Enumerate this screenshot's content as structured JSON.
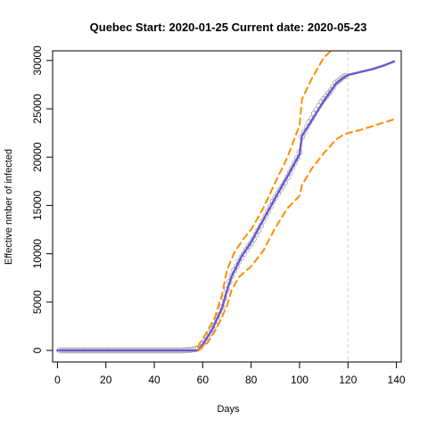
{
  "chart_data": {
    "type": "line",
    "title": "Quebec Start:  2020-01-25   Current date:  2020-05-23",
    "xlabel": "Days",
    "ylabel": "Effective nmber of infected",
    "xlim": [
      -2,
      142
    ],
    "ylim": [
      -1200,
      31000
    ],
    "xticks": [
      0,
      20,
      40,
      60,
      80,
      100,
      120,
      140
    ],
    "xtick_labels": [
      "0",
      "20",
      "40",
      "60",
      "80",
      "100",
      "120",
      "140"
    ],
    "yticks": [
      0,
      5000,
      10000,
      15000,
      20000,
      25000,
      30000
    ],
    "ytick_labels": [
      "0",
      "5000",
      "10000",
      "15000",
      "20000",
      "25000",
      "30000"
    ],
    "current_day": 120,
    "grid": false,
    "colors": {
      "fit": "#6a5acd",
      "bounds": "#ff8c00",
      "observed": "#a9a9a9",
      "current_day_line": "#d3d3d3"
    },
    "observed_markers": "open circles, days 1 to 119",
    "observed_points": [
      [
        1,
        0
      ],
      [
        2,
        0
      ],
      [
        3,
        0
      ],
      [
        4,
        0
      ],
      [
        5,
        0
      ],
      [
        6,
        0
      ],
      [
        7,
        0
      ],
      [
        8,
        0
      ],
      [
        9,
        0
      ],
      [
        10,
        0
      ],
      [
        11,
        0
      ],
      [
        12,
        0
      ],
      [
        13,
        0
      ],
      [
        14,
        0
      ],
      [
        15,
        0
      ],
      [
        16,
        0
      ],
      [
        17,
        0
      ],
      [
        18,
        0
      ],
      [
        19,
        0
      ],
      [
        20,
        0
      ],
      [
        21,
        0
      ],
      [
        22,
        0
      ],
      [
        23,
        0
      ],
      [
        24,
        0
      ],
      [
        25,
        0
      ],
      [
        26,
        0
      ],
      [
        27,
        0
      ],
      [
        28,
        0
      ],
      [
        29,
        0
      ],
      [
        30,
        0
      ],
      [
        31,
        0
      ],
      [
        32,
        0
      ],
      [
        33,
        0
      ],
      [
        34,
        0
      ],
      [
        35,
        0
      ],
      [
        36,
        0
      ],
      [
        37,
        0
      ],
      [
        38,
        0
      ],
      [
        39,
        0
      ],
      [
        40,
        0
      ],
      [
        41,
        0
      ],
      [
        42,
        0
      ],
      [
        43,
        0
      ],
      [
        44,
        0
      ],
      [
        45,
        0
      ],
      [
        46,
        0
      ],
      [
        47,
        0
      ],
      [
        48,
        0
      ],
      [
        49,
        0
      ],
      [
        50,
        0
      ],
      [
        51,
        0
      ],
      [
        52,
        10
      ],
      [
        53,
        20
      ],
      [
        54,
        40
      ],
      [
        55,
        60
      ],
      [
        56,
        100
      ],
      [
        57,
        150
      ],
      [
        58,
        220
      ],
      [
        59,
        350
      ],
      [
        60,
        700
      ],
      [
        61,
        1000
      ],
      [
        62,
        1400
      ],
      [
        63,
        1800
      ],
      [
        64,
        2200
      ],
      [
        65,
        2600
      ],
      [
        66,
        3100
      ],
      [
        67,
        3700
      ],
      [
        68,
        4500
      ],
      [
        69,
        5400
      ],
      [
        70,
        6300
      ],
      [
        71,
        7100
      ],
      [
        72,
        7700
      ],
      [
        73,
        8300
      ],
      [
        74,
        8700
      ],
      [
        75,
        9200
      ],
      [
        76,
        9600
      ],
      [
        77,
        10000
      ],
      [
        78,
        10400
      ],
      [
        79,
        10800
      ],
      [
        80,
        11100
      ],
      [
        81,
        11500
      ],
      [
        82,
        12000
      ],
      [
        83,
        12400
      ],
      [
        84,
        12900
      ],
      [
        85,
        13400
      ],
      [
        86,
        13900
      ],
      [
        87,
        14400
      ],
      [
        88,
        14900
      ],
      [
        89,
        15400
      ],
      [
        90,
        15800
      ],
      [
        91,
        16200
      ],
      [
        92,
        16600
      ],
      [
        93,
        17000
      ],
      [
        94,
        17400
      ],
      [
        95,
        17900
      ],
      [
        96,
        18400
      ],
      [
        97,
        18900
      ],
      [
        98,
        19400
      ],
      [
        99,
        19900
      ],
      [
        100,
        20500
      ],
      [
        101,
        22100
      ],
      [
        102,
        22600
      ],
      [
        103,
        23100
      ],
      [
        104,
        23600
      ],
      [
        105,
        24000
      ],
      [
        106,
        24500
      ],
      [
        107,
        24900
      ],
      [
        108,
        25300
      ],
      [
        109,
        25700
      ],
      [
        110,
        26000
      ],
      [
        111,
        26300
      ],
      [
        112,
        26600
      ],
      [
        113,
        26900
      ],
      [
        114,
        27300
      ],
      [
        115,
        27700
      ],
      [
        116,
        27900
      ],
      [
        117,
        28100
      ],
      [
        118,
        28300
      ],
      [
        119,
        28400
      ]
    ],
    "series": [
      {
        "style": "solid",
        "points": [
          [
            0,
            0
          ],
          [
            58,
            0
          ],
          [
            60,
            600
          ],
          [
            64,
            2200
          ],
          [
            68,
            4400
          ],
          [
            70,
            6200
          ],
          [
            72,
            7700
          ],
          [
            76,
            9700
          ],
          [
            80,
            11200
          ],
          [
            85,
            13500
          ],
          [
            90,
            15800
          ],
          [
            95,
            18000
          ],
          [
            98,
            19400
          ],
          [
            100,
            20300
          ],
          [
            101,
            22200
          ],
          [
            105,
            23800
          ],
          [
            110,
            25800
          ],
          [
            115,
            27600
          ],
          [
            118,
            28200
          ],
          [
            120,
            28500
          ],
          [
            125,
            28800
          ],
          [
            130,
            29100
          ],
          [
            135,
            29500
          ],
          [
            139,
            29900
          ]
        ]
      },
      {
        "style": "dashed",
        "points": [
          [
            58,
            400
          ],
          [
            61,
            1600
          ],
          [
            65,
            3400
          ],
          [
            68,
            5800
          ],
          [
            70,
            8300
          ],
          [
            73,
            10100
          ],
          [
            77,
            11600
          ],
          [
            80,
            12500
          ],
          [
            85,
            14700
          ],
          [
            90,
            17400
          ],
          [
            95,
            20000
          ],
          [
            100,
            23300
          ],
          [
            101,
            26000
          ],
          [
            105,
            28100
          ],
          [
            110,
            30300
          ],
          [
            113,
            31000
          ]
        ]
      },
      {
        "style": "dashed",
        "points": [
          [
            58,
            0
          ],
          [
            62,
            800
          ],
          [
            66,
            2400
          ],
          [
            70,
            4600
          ],
          [
            72,
            6300
          ],
          [
            75,
            7600
          ],
          [
            80,
            8700
          ],
          [
            85,
            10300
          ],
          [
            90,
            12700
          ],
          [
            95,
            14700
          ],
          [
            100,
            16000
          ],
          [
            101,
            17100
          ],
          [
            105,
            18800
          ],
          [
            110,
            20400
          ],
          [
            115,
            21800
          ],
          [
            118,
            22300
          ],
          [
            120,
            22500
          ],
          [
            125,
            22800
          ],
          [
            130,
            23200
          ],
          [
            135,
            23600
          ],
          [
            139,
            23900
          ]
        ]
      }
    ]
  }
}
